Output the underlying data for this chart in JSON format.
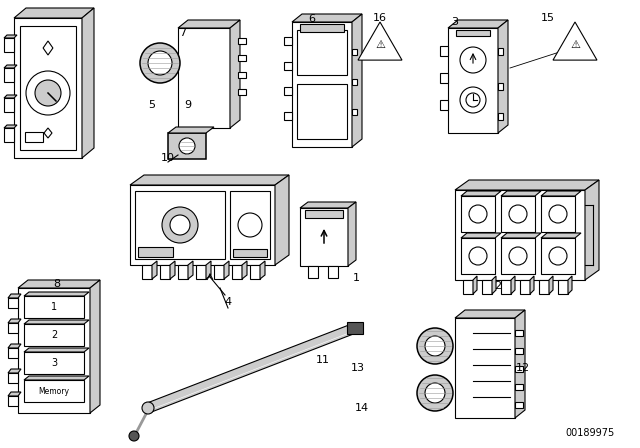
{
  "background_color": "#ffffff",
  "part_number": "00189975",
  "figsize": [
    6.4,
    4.48
  ],
  "dpi": 100,
  "lw": 0.8
}
